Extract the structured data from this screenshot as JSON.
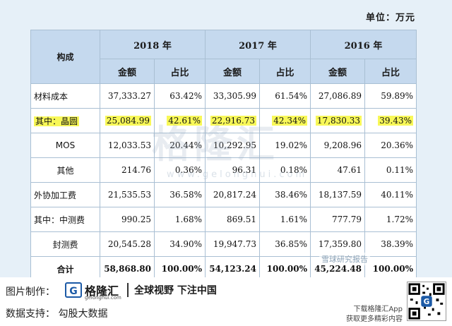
{
  "unit_label": "单位：万元",
  "table": {
    "corner_header": "构成",
    "years": [
      "2018 年",
      "2017 年",
      "2016 年"
    ],
    "sub_headers": [
      "金额",
      "占比"
    ],
    "rows": [
      {
        "label": "材料成本",
        "indent": false,
        "highlight": false,
        "bold": false,
        "cells": [
          "37,333.27",
          "63.42%",
          "33,305.99",
          "61.54%",
          "27,086.89",
          "59.89%"
        ]
      },
      {
        "label": "其中：晶圆",
        "indent": false,
        "highlight": true,
        "bold": false,
        "cells": [
          "25,084.99",
          "42.61%",
          "22,916.73",
          "42.34%",
          "17,830.33",
          "39.43%"
        ]
      },
      {
        "label": "MOS",
        "indent": true,
        "highlight": false,
        "bold": false,
        "cells": [
          "12,033.53",
          "20.44%",
          "10,292.95",
          "19.02%",
          "9,208.96",
          "20.36%"
        ]
      },
      {
        "label": "其他",
        "indent": true,
        "highlight": false,
        "bold": false,
        "cells": [
          "214.76",
          "0.36%",
          "96.31",
          "0.18%",
          "47.61",
          "0.11%"
        ]
      },
      {
        "label": "外协加工费",
        "indent": false,
        "highlight": false,
        "bold": false,
        "cells": [
          "21,535.53",
          "36.58%",
          "20,817.24",
          "38.46%",
          "18,137.59",
          "40.11%"
        ]
      },
      {
        "label": "其中：中测费",
        "indent": false,
        "highlight": false,
        "bold": false,
        "cells": [
          "990.25",
          "1.68%",
          "869.51",
          "1.61%",
          "777.79",
          "1.72%"
        ]
      },
      {
        "label": "封测费",
        "indent": true,
        "highlight": false,
        "bold": false,
        "cells": [
          "20,545.28",
          "34.90%",
          "19,947.73",
          "36.85%",
          "17,359.80",
          "38.39%"
        ]
      },
      {
        "label": "合计",
        "indent": true,
        "highlight": false,
        "bold": true,
        "cells": [
          "58,868.80",
          "100.00%",
          "54,123.24",
          "100.00%",
          "45,224.48",
          "100.00%"
        ]
      }
    ]
  },
  "watermark": {
    "text": "格隆汇",
    "url": "www.gelonghui.com"
  },
  "wechat_overlay": "雪球研究报告",
  "footer": {
    "made_by_label": "图片制作：",
    "logo_mark": "G",
    "logo_name": "格隆汇",
    "logo_url": "gelonghui.com",
    "slogan": "全球视野 下注中国",
    "data_support": "数据支持： 勾股大数据",
    "download_line1": "下载格隆汇App",
    "download_line2": "获取更多精彩内容"
  },
  "colors": {
    "header_bg": "#c5d9ee",
    "border": "#a9bfd3",
    "highlight": "#f8f858",
    "page_bg": "#e6f0f8"
  }
}
